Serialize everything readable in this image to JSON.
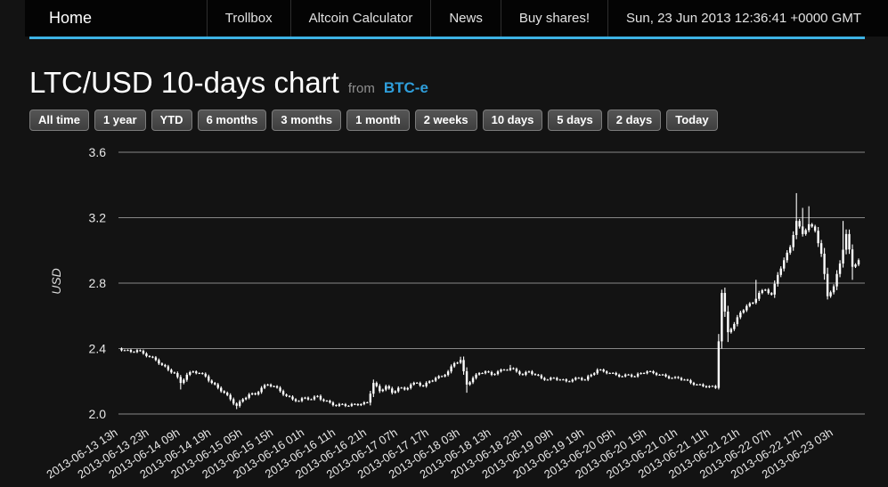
{
  "nav": {
    "items": [
      {
        "label": "Home"
      },
      {
        "label": "Trollbox"
      },
      {
        "label": "Altcoin Calculator"
      },
      {
        "label": "News"
      },
      {
        "label": "Buy shares!"
      }
    ],
    "clock": "Sun, 23 Jun 2013 12:36:41 +0000 GMT"
  },
  "header": {
    "title": "LTC/USD 10-days chart",
    "from_label": "from",
    "source": "BTC-e"
  },
  "range_buttons": [
    "All time",
    "1 year",
    "YTD",
    "6 months",
    "3 months",
    "1 month",
    "2 weeks",
    "10 days",
    "5 days",
    "2 days",
    "Today"
  ],
  "colors": {
    "accent_blue": "#3db2e4",
    "link_blue": "#2f9fdc",
    "candle": "#ffffff",
    "gridline": "#9c9c9c",
    "tick_text": "#e8e8e8"
  },
  "chart_data": {
    "type": "candlestick",
    "title": "LTC/USD 10-days chart",
    "source": "BTC-e",
    "ylabel": "USD",
    "y_ticks": [
      2.0,
      2.4,
      2.8,
      3.2,
      3.6
    ],
    "ylim": [
      2.0,
      3.6
    ],
    "grid": true,
    "x_hours_total": 240,
    "x_tick_step_hours": 10,
    "x_tick_labels": [
      "2013-06-13 13h",
      "2013-06-13 23h",
      "2013-06-14 09h",
      "2013-06-14 19h",
      "2013-06-15 05h",
      "2013-06-15 15h",
      "2013-06-16 01h",
      "2013-06-16 11h",
      "2013-06-16 21h",
      "2013-06-17 07h",
      "2013-06-17 17h",
      "2013-06-18 03h",
      "2013-06-18 13h",
      "2013-06-18 23h",
      "2013-06-19 09h",
      "2013-06-19 19h",
      "2013-06-20 05h",
      "2013-06-20 15h",
      "2013-06-21 01h",
      "2013-06-21 11h",
      "2013-06-21 21h",
      "2013-06-22 07h",
      "2013-06-22 17h",
      "2013-06-23 03h"
    ],
    "close_series": [
      [
        0,
        2.4
      ],
      [
        2,
        2.39
      ],
      [
        4,
        2.38
      ],
      [
        6,
        2.39
      ],
      [
        8,
        2.37
      ],
      [
        10,
        2.35
      ],
      [
        12,
        2.33
      ],
      [
        14,
        2.3
      ],
      [
        16,
        2.27
      ],
      [
        18,
        2.25
      ],
      [
        20,
        2.19
      ],
      [
        22,
        2.24
      ],
      [
        24,
        2.26
      ],
      [
        26,
        2.25
      ],
      [
        28,
        2.23
      ],
      [
        30,
        2.19
      ],
      [
        32,
        2.16
      ],
      [
        34,
        2.13
      ],
      [
        36,
        2.09
      ],
      [
        38,
        2.05
      ],
      [
        40,
        2.09
      ],
      [
        42,
        2.12
      ],
      [
        44,
        2.12
      ],
      [
        46,
        2.16
      ],
      [
        48,
        2.18
      ],
      [
        50,
        2.17
      ],
      [
        52,
        2.14
      ],
      [
        54,
        2.11
      ],
      [
        56,
        2.09
      ],
      [
        58,
        2.08
      ],
      [
        60,
        2.1
      ],
      [
        62,
        2.09
      ],
      [
        64,
        2.11
      ],
      [
        66,
        2.08
      ],
      [
        68,
        2.07
      ],
      [
        70,
        2.05
      ],
      [
        72,
        2.06
      ],
      [
        74,
        2.05
      ],
      [
        76,
        2.06
      ],
      [
        78,
        2.06
      ],
      [
        80,
        2.07
      ],
      [
        82,
        2.19
      ],
      [
        84,
        2.14
      ],
      [
        86,
        2.17
      ],
      [
        88,
        2.13
      ],
      [
        90,
        2.16
      ],
      [
        92,
        2.15
      ],
      [
        94,
        2.18
      ],
      [
        96,
        2.19
      ],
      [
        98,
        2.17
      ],
      [
        100,
        2.2
      ],
      [
        102,
        2.22
      ],
      [
        104,
        2.23
      ],
      [
        106,
        2.26
      ],
      [
        108,
        2.31
      ],
      [
        110,
        2.33
      ],
      [
        112,
        2.18
      ],
      [
        114,
        2.22
      ],
      [
        116,
        2.25
      ],
      [
        118,
        2.26
      ],
      [
        120,
        2.24
      ],
      [
        122,
        2.26
      ],
      [
        124,
        2.27
      ],
      [
        126,
        2.28
      ],
      [
        128,
        2.26
      ],
      [
        130,
        2.24
      ],
      [
        132,
        2.26
      ],
      [
        134,
        2.24
      ],
      [
        136,
        2.22
      ],
      [
        138,
        2.21
      ],
      [
        140,
        2.22
      ],
      [
        142,
        2.21
      ],
      [
        144,
        2.2
      ],
      [
        146,
        2.21
      ],
      [
        148,
        2.22
      ],
      [
        150,
        2.21
      ],
      [
        152,
        2.24
      ],
      [
        154,
        2.27
      ],
      [
        156,
        2.26
      ],
      [
        158,
        2.25
      ],
      [
        160,
        2.24
      ],
      [
        162,
        2.23
      ],
      [
        164,
        2.24
      ],
      [
        166,
        2.23
      ],
      [
        168,
        2.25
      ],
      [
        170,
        2.26
      ],
      [
        172,
        2.25
      ],
      [
        174,
        2.24
      ],
      [
        176,
        2.23
      ],
      [
        178,
        2.22
      ],
      [
        180,
        2.22
      ],
      [
        182,
        2.21
      ],
      [
        184,
        2.19
      ],
      [
        186,
        2.18
      ],
      [
        188,
        2.17
      ],
      [
        190,
        2.17
      ],
      [
        192,
        2.16
      ],
      [
        194,
        2.74
      ],
      [
        196,
        2.5
      ],
      [
        198,
        2.55
      ],
      [
        200,
        2.62
      ],
      [
        202,
        2.66
      ],
      [
        204,
        2.68
      ],
      [
        206,
        2.74
      ],
      [
        208,
        2.76
      ],
      [
        210,
        2.73
      ],
      [
        212,
        2.85
      ],
      [
        214,
        2.94
      ],
      [
        216,
        3.02
      ],
      [
        218,
        3.18
      ],
      [
        220,
        3.1
      ],
      [
        222,
        3.16
      ],
      [
        224,
        3.12
      ],
      [
        226,
        2.98
      ],
      [
        228,
        2.72
      ],
      [
        230,
        2.78
      ],
      [
        232,
        2.92
      ],
      [
        234,
        3.1
      ],
      [
        236,
        2.9
      ],
      [
        238,
        2.94
      ]
    ],
    "wick_overrides": [
      {
        "t": 20,
        "low": 2.15
      },
      {
        "t": 38,
        "low": 2.03
      },
      {
        "t": 110,
        "high": 2.35
      },
      {
        "t": 112,
        "low": 2.13
      },
      {
        "t": 126,
        "high": 2.3
      },
      {
        "t": 193,
        "low": 2.15
      },
      {
        "t": 194,
        "high": 2.76
      },
      {
        "t": 196,
        "low": 2.44
      },
      {
        "t": 205,
        "high": 2.82
      },
      {
        "t": 218,
        "high": 3.35
      },
      {
        "t": 220,
        "high": 3.26
      },
      {
        "t": 222,
        "high": 3.27
      },
      {
        "t": 228,
        "low": 2.7
      },
      {
        "t": 233,
        "high": 3.18
      },
      {
        "t": 236,
        "low": 2.82
      }
    ]
  }
}
